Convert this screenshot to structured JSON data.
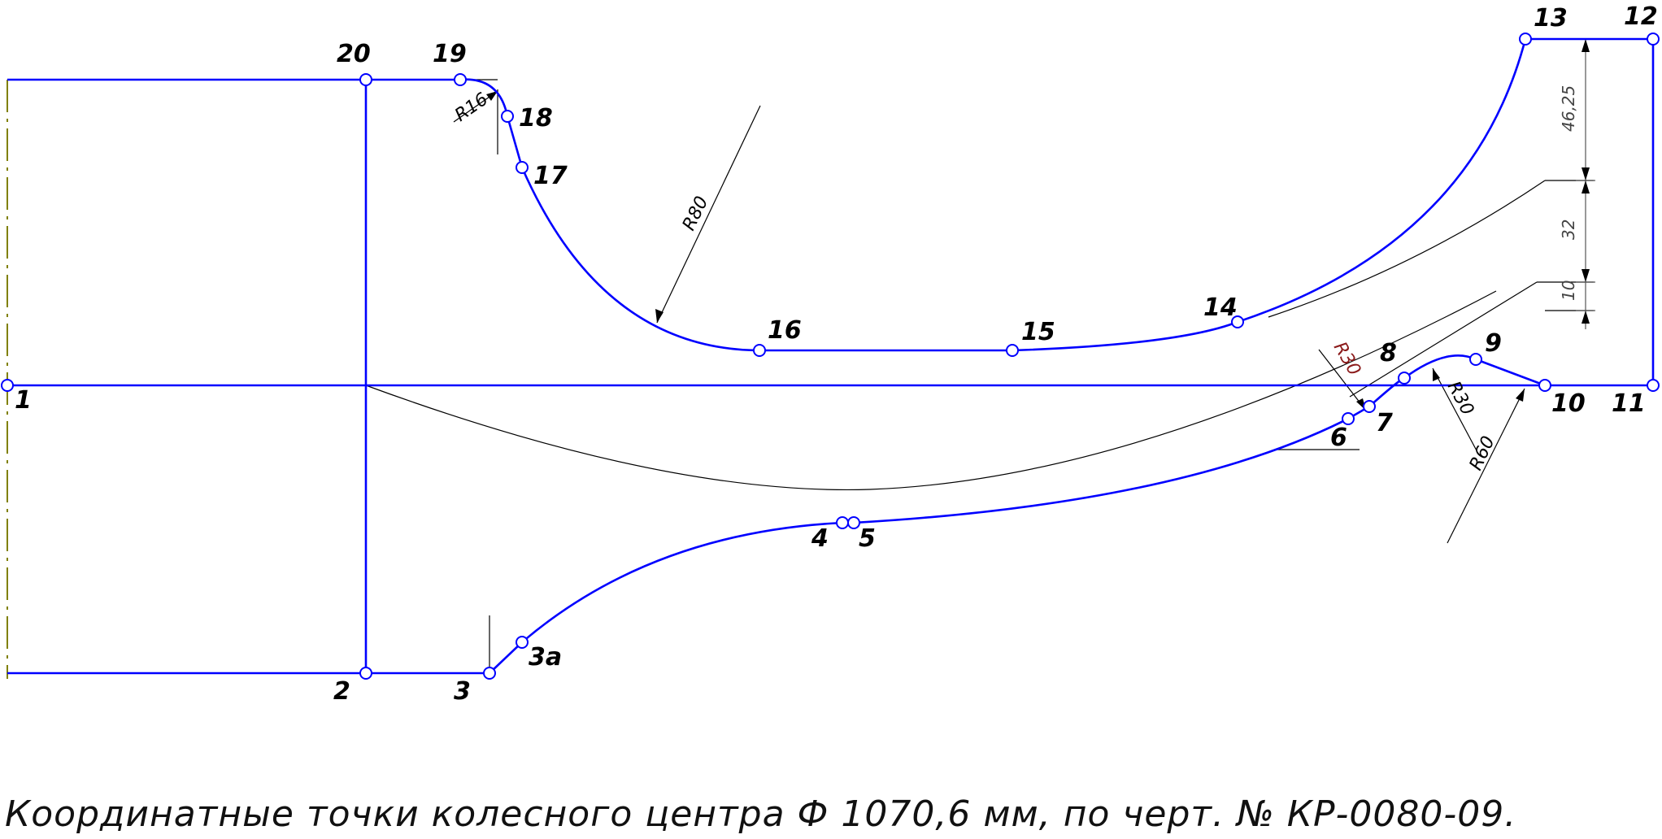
{
  "points": [
    {
      "id": "1",
      "label": "1"
    },
    {
      "id": "2",
      "label": "2"
    },
    {
      "id": "3",
      "label": "3"
    },
    {
      "id": "3a",
      "label": "3а"
    },
    {
      "id": "4",
      "label": "4"
    },
    {
      "id": "5",
      "label": "5"
    },
    {
      "id": "6",
      "label": "6"
    },
    {
      "id": "7",
      "label": "7"
    },
    {
      "id": "8",
      "label": "8"
    },
    {
      "id": "9",
      "label": "9"
    },
    {
      "id": "10",
      "label": "10"
    },
    {
      "id": "11",
      "label": "11"
    },
    {
      "id": "12",
      "label": "12"
    },
    {
      "id": "13",
      "label": "13"
    },
    {
      "id": "14",
      "label": "14"
    },
    {
      "id": "15",
      "label": "15"
    },
    {
      "id": "16",
      "label": "16"
    },
    {
      "id": "17",
      "label": "17"
    },
    {
      "id": "18",
      "label": "18"
    },
    {
      "id": "19",
      "label": "19"
    },
    {
      "id": "20",
      "label": "20"
    }
  ],
  "radii": {
    "r16": "R16",
    "r80": "R80",
    "r30_left": "R30",
    "r30_right": "R30",
    "r60": "R60"
  },
  "dimensions": {
    "d46": "46,25",
    "d32": "32",
    "d10": "10"
  },
  "caption": "Координатные точки колесного центра Ф 1070,6 мм, по черт. № КР-0080-09.",
  "colors": {
    "profile": "#0000ff",
    "construction": "#000000",
    "axis": "#808000",
    "dimension": "#555555",
    "r30_dark_red": "#8b1a1a"
  }
}
